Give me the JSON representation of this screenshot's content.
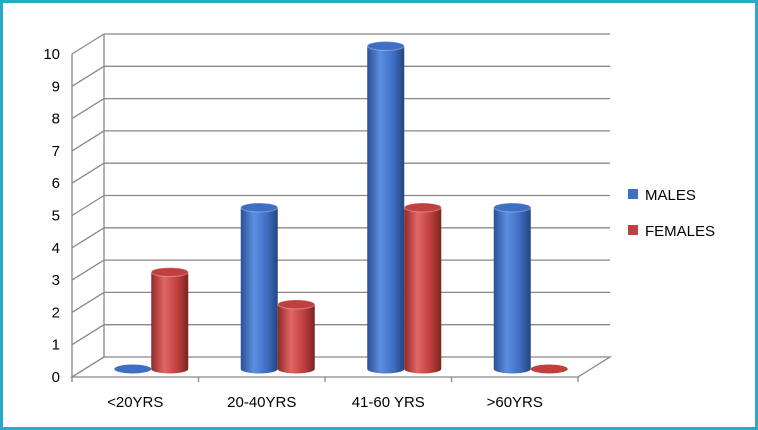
{
  "chart_data": {
    "type": "bar",
    "style": "3d-cylinder",
    "categories": [
      "<20YRS",
      "20-40YRS",
      "41-60 YRS",
      ">60YRS"
    ],
    "series": [
      {
        "name": "MALES",
        "values": [
          0,
          5,
          10,
          5
        ],
        "color": "#3f6fc4"
      },
      {
        "name": "FEMALES",
        "values": [
          3,
          2,
          5,
          0
        ],
        "color": "#c0403f"
      }
    ],
    "ylim": [
      0,
      10
    ],
    "yticks": [
      0,
      1,
      2,
      3,
      4,
      5,
      6,
      7,
      8,
      9,
      10
    ],
    "grid": true,
    "legend_position": "right",
    "title": "",
    "xlabel": "",
    "ylabel": ""
  },
  "colors": {
    "border": "#2aa7c9",
    "grid": "#888888"
  }
}
